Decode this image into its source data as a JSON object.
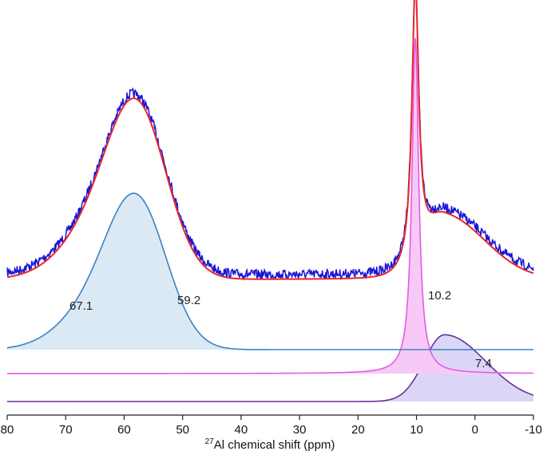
{
  "chart_data": {
    "type": "line",
    "title": "",
    "xlabel_sup": "27",
    "xlabel": "Al chemical shift   (ppm)",
    "ylabel": "",
    "xlim": [
      80,
      -10
    ],
    "xticks": [
      "80",
      "70",
      "60",
      "50",
      "40",
      "30",
      "20",
      "10",
      "0",
      "-10"
    ],
    "xtick_values": [
      80,
      70,
      60,
      50,
      40,
      30,
      20,
      10,
      0,
      -10
    ],
    "grid": false,
    "colors": {
      "experimental": "#1a16d6",
      "fit": "#e8262b",
      "comp1": "#3b82c4",
      "comp1_fill": "#dbe9f5",
      "comp2": "#e45ae8",
      "comp2_fill": "#f7c9f7",
      "comp3": "#6a2f9a",
      "comp3_fill": "#dcd6f6"
    },
    "series": [
      {
        "role": "experimental"
      },
      {
        "role": "fit"
      },
      {
        "role": "component",
        "peaks": [
          {
            "center": 63.5,
            "height": 0.32,
            "width": 6.5
          },
          {
            "center": 57.5,
            "height": 0.82,
            "width": 5.0
          }
        ]
      },
      {
        "role": "component",
        "peaks": [
          {
            "center": 10.2,
            "height": 1.0,
            "width": 0.7
          }
        ]
      },
      {
        "role": "component",
        "peaks": [
          {
            "center": 5.2,
            "height": 0.44,
            "width_left": 3.5,
            "width_right": 7.0
          }
        ]
      }
    ],
    "annotations": [
      {
        "text": "67.1",
        "x": 67.1
      },
      {
        "text": "59.2",
        "x": 59.2
      },
      {
        "text": "10.2",
        "x": 10.2
      },
      {
        "text": "7.4",
        "x": 7.4
      }
    ]
  }
}
